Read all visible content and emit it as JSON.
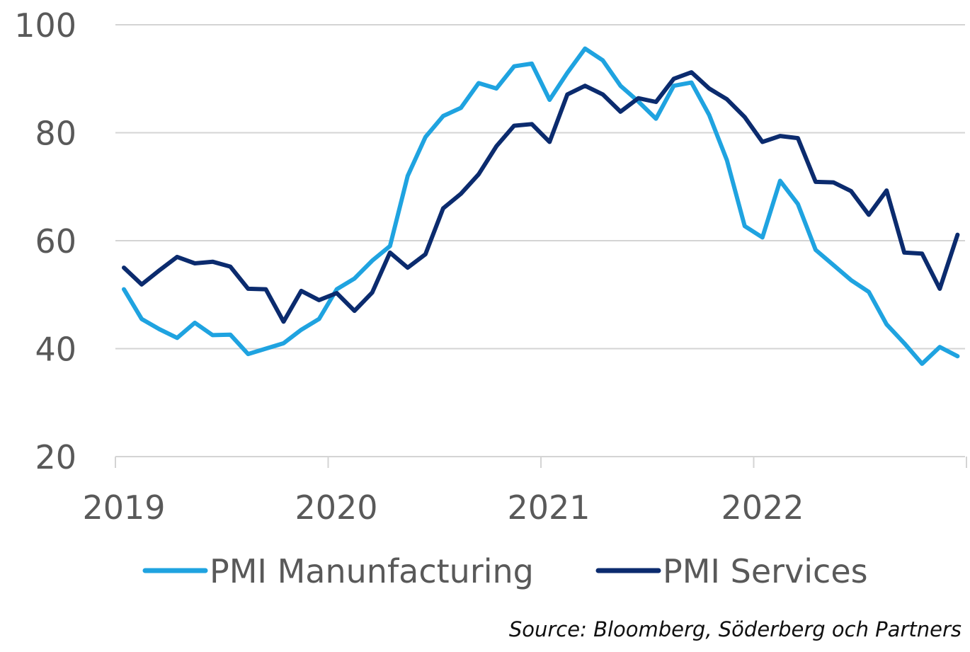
{
  "chart_data": {
    "type": "line",
    "title": "",
    "xlabel": "",
    "ylabel": "",
    "x_tick_labels": [
      "2019",
      "2020",
      "2021",
      "2022"
    ],
    "y_ticks": [
      20,
      40,
      60,
      80,
      100
    ],
    "ylim": [
      20,
      100
    ],
    "x_start": "2019-01",
    "x_end": "2022-12",
    "grid": "horizontal",
    "legend_placement": "bottom",
    "months": [
      "2019-01",
      "2019-02",
      "2019-03",
      "2019-04",
      "2019-05",
      "2019-06",
      "2019-07",
      "2019-08",
      "2019-09",
      "2019-10",
      "2019-11",
      "2019-12",
      "2020-01",
      "2020-02",
      "2020-03",
      "2020-04",
      "2020-05",
      "2020-06",
      "2020-07",
      "2020-08",
      "2020-09",
      "2020-10",
      "2020-11",
      "2020-12",
      "2021-01",
      "2021-02",
      "2021-03",
      "2021-04",
      "2021-05",
      "2021-06",
      "2021-07",
      "2021-08",
      "2021-09",
      "2021-10",
      "2021-11",
      "2021-12",
      "2022-01",
      "2022-02",
      "2022-03",
      "2022-04",
      "2022-05",
      "2022-06",
      "2022-07",
      "2022-08",
      "2022-09",
      "2022-10",
      "2022-11",
      "2022-12"
    ],
    "series": [
      {
        "name": "PMI Manunfacturing",
        "color": "#1fa3e0",
        "values": [
          51.0,
          45.5,
          43.6,
          42.0,
          44.8,
          42.5,
          42.6,
          39.0,
          40.0,
          41.0,
          43.5,
          45.5,
          51.0,
          53.0,
          56.3,
          59.0,
          72.0,
          79.2,
          83.1,
          84.6,
          89.2,
          88.2,
          92.3,
          92.8,
          86.1,
          91.1,
          95.6,
          93.4,
          88.7,
          85.8,
          82.6,
          88.7,
          89.3,
          83.3,
          74.9,
          62.7,
          60.6,
          71.1,
          66.8,
          58.3,
          55.5,
          52.7,
          50.5,
          44.5,
          41.0,
          37.2,
          40.3,
          38.6
        ]
      },
      {
        "name": "PMI Services",
        "color": "#0b2b6e",
        "values": [
          55.0,
          51.9,
          54.5,
          57.0,
          55.8,
          56.1,
          55.2,
          51.1,
          51.0,
          45.0,
          50.7,
          49.0,
          50.3,
          47.0,
          50.4,
          57.8,
          55.0,
          57.5,
          66.0,
          68.7,
          72.3,
          77.5,
          81.3,
          81.6,
          78.3,
          87.1,
          88.7,
          87.1,
          83.9,
          86.4,
          85.7,
          90.0,
          91.2,
          88.2,
          86.2,
          82.9,
          78.3,
          79.4,
          79.0,
          70.9,
          70.8,
          69.2,
          64.8,
          69.3,
          57.8,
          57.6,
          51.1,
          61.1
        ]
      }
    ]
  },
  "source_note": "Source: Bloomberg, Söderberg och Partners"
}
